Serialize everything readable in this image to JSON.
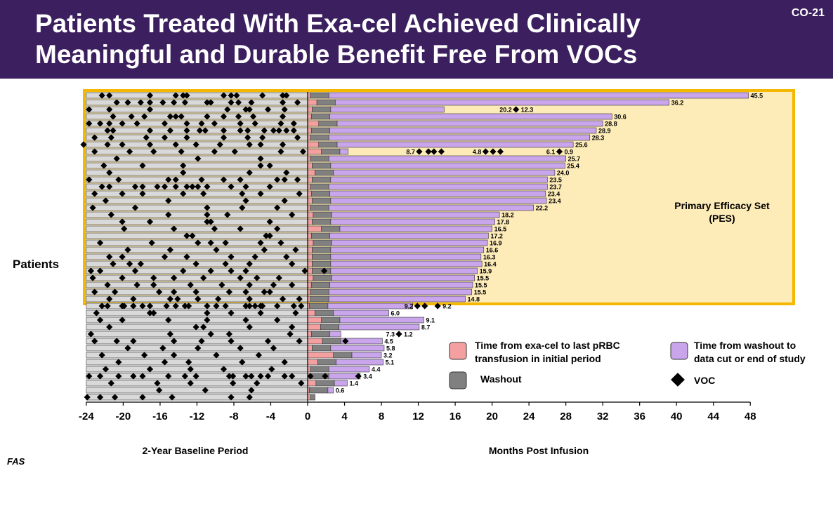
{
  "slide": {
    "title_line1": "Patients Treated With Exa-cel Achieved Clinically",
    "title_line2": "Meaningful and Durable Benefit Free From VOCs",
    "slide_id": "CO-21",
    "footnote": "FAS"
  },
  "chart_data": {
    "type": "swimmer",
    "y_label": "Patients",
    "x_left_label": "2-Year Baseline Period",
    "x_right_label": "Months Post Infusion",
    "x_ticks": [
      -24,
      -20,
      -16,
      -12,
      -8,
      -4,
      0,
      4,
      8,
      12,
      16,
      20,
      24,
      28,
      32,
      36,
      40,
      44,
      48
    ],
    "xlim": [
      -24,
      48
    ],
    "pes_label_line1": "Primary Efficacy Set",
    "pes_label_line2": "(PES)",
    "pes_count": 30,
    "colors": {
      "transfusion": "#f4a0a0",
      "washout": "#808080",
      "post": "#c9a6ec",
      "baseline": "#d9d9d9",
      "pes_fill": "#fdebb8",
      "pes_border": "#f5b800",
      "header": "#3b1f5e"
    },
    "legend": {
      "transfusion": "Time from exa-cel to last pRBC transfusion in initial period",
      "washout": "Washout",
      "post": "Time from washout to data cut or end of study",
      "voc": "VOC"
    },
    "patients": [
      {
        "total": "45.5",
        "t": 0.3,
        "w": 2.0,
        "b": [
          -22.3,
          -21.5,
          -17.1,
          -14.3,
          -13.5,
          -13.1,
          -9.1,
          -8.3,
          -7.7,
          -4.9,
          -2.7,
          -2.3
        ]
      },
      {
        "total": "36.2",
        "t": 1.0,
        "w": 2.0,
        "b": [
          -20.7,
          -19.5,
          -18.1,
          -17.1,
          -15.7,
          -14.5,
          -13.3,
          -10.9,
          -10.5,
          -8.3,
          -7.5,
          -6.1,
          -2.7,
          -1.1
        ]
      },
      {
        "total": "12.3",
        "t": 0.5,
        "w": 2.0,
        "b": [
          -23.7,
          -21.5,
          -17.1,
          -8.7,
          -6.7,
          -6.3,
          -4.3,
          -2.5
        ],
        "p": [
          [
            22.6,
            "20.2"
          ]
        ]
      },
      {
        "total": "30.6",
        "t": 0.4,
        "w": 2.0,
        "b": [
          -21.1,
          -19.1,
          -17.7,
          -14.9,
          -14.3,
          -13.7,
          -10.9,
          -9.1,
          -7.5,
          -5.9,
          -2.7
        ]
      },
      {
        "total": "28.8",
        "t": 1.2,
        "w": 2.0,
        "b": [
          -23.7,
          -22.5,
          -21.5,
          -20.1,
          -18.5,
          -15.5,
          -13.1,
          -11.5,
          -10.1,
          -7.3,
          -5.7,
          -2.9,
          -1.5
        ]
      },
      {
        "total": "28.9",
        "t": 0.4,
        "w": 2.0,
        "b": [
          -21.7,
          -21.1,
          -17.1,
          -14.9,
          -13.1,
          -11.7,
          -11.1,
          -9.1,
          -7.3,
          -6.5,
          -4.7,
          -3.7,
          -3.1,
          -2.3,
          -1.5
        ]
      },
      {
        "total": "28.3",
        "t": 0.3,
        "w": 2.0,
        "b": [
          -23.1,
          -21.3,
          -17.5,
          -15.5,
          -13.1,
          -9.1,
          -6.5,
          -4.9,
          -1.1
        ]
      },
      {
        "total": "25.6",
        "t": 1.2,
        "w": 2.0,
        "b": [
          -24.3,
          -21.7,
          -20.1,
          -17.1,
          -14.3,
          -12.1,
          -9.5,
          -6.3,
          -5.1,
          -2.7
        ]
      },
      {
        "total": "0.9",
        "t": 1.5,
        "w": 2.0,
        "b": [
          -23.1,
          -19.3,
          -16.7,
          -13.7,
          -10.1,
          -7.9,
          -2.9,
          -0.5
        ],
        "p": [
          [
            12.1,
            "8.7"
          ],
          [
            13.1,
            ""
          ],
          [
            13.7,
            ""
          ],
          [
            14.5,
            ""
          ],
          [
            19.3,
            "4.8"
          ],
          [
            20.1,
            ""
          ],
          [
            20.9,
            ""
          ],
          [
            27.3,
            "6.1"
          ]
        ]
      },
      {
        "total": "25.7",
        "t": 0.3,
        "w": 2.0,
        "b": [
          -20.7,
          -11.9,
          -5.1
        ]
      },
      {
        "total": "25.4",
        "t": 0.5,
        "w": 2.0,
        "b": [
          -22.1,
          -17.9,
          -13.5,
          -5.1,
          -4.1
        ]
      },
      {
        "total": "24.0",
        "t": 0.8,
        "w": 2.0,
        "b": [
          -21.5,
          -13.5,
          -6.3,
          -2.3
        ]
      },
      {
        "total": "23.5",
        "t": 0.5,
        "w": 2.0,
        "b": [
          -23.7,
          -20.5,
          -15.1,
          -14.3,
          -11.5,
          -9.1,
          -7.3,
          -3.3,
          -2.5,
          -1.1
        ]
      },
      {
        "total": "23.7",
        "t": 0.3,
        "w": 2.0,
        "b": [
          -22.3,
          -21.5,
          -18.7,
          -17.9,
          -16.3,
          -15.5,
          -14.3,
          -13.1,
          -12.5,
          -11.9,
          -10.9,
          -8.3,
          -6.7,
          -4.1
        ]
      },
      {
        "total": "23.4",
        "t": 0.4,
        "w": 2.0,
        "b": [
          -23.1,
          -20.1,
          -17.9,
          -13.5,
          -11.3,
          -7.1,
          -5.1,
          -0.9
        ]
      },
      {
        "total": "23.4",
        "t": 0.5,
        "w": 2.0,
        "b": [
          -21.9,
          -15.1,
          -6.7,
          -2.5
        ]
      },
      {
        "total": "22.2",
        "t": 0.3,
        "w": 2.0,
        "b": [
          -23.3,
          -18.7,
          -10.9,
          -7.1,
          -3.3
        ]
      },
      {
        "total": "18.2",
        "t": 0.6,
        "w": 2.0,
        "b": [
          -21.3,
          -15.1,
          -10.9,
          -8.7,
          -1.7
        ]
      },
      {
        "total": "17.8",
        "t": 0.5,
        "w": 2.0,
        "b": [
          -20.1,
          -17.1,
          -10.9,
          -10.5,
          -4.1
        ]
      },
      {
        "total": "16.5",
        "t": 1.5,
        "w": 2.0,
        "b": [
          -19.9,
          -14.5,
          -10.1,
          -7.3,
          -3.3
        ]
      },
      {
        "total": "17.2",
        "t": 0.4,
        "w": 2.0,
        "b": [
          -13.1,
          -12.5,
          -4.5,
          -4.1
        ]
      },
      {
        "total": "16.9",
        "t": 0.6,
        "w": 2.0,
        "b": [
          -22.5,
          -16.9,
          -11.9,
          -10.5,
          -8.9,
          -5.1,
          -2.9
        ]
      },
      {
        "total": "16.6",
        "t": 0.5,
        "w": 2.0,
        "b": [
          -19.5,
          -14.9,
          -9.9,
          -4.7,
          -1.3
        ]
      },
      {
        "total": "16.3",
        "t": 0.5,
        "w": 2.0,
        "b": [
          -21.5,
          -20.1,
          -15.5,
          -13.1,
          -8.3,
          -5.7,
          -2.3
        ]
      },
      {
        "total": "16.4",
        "t": 0.5,
        "w": 2.0,
        "b": [
          -21.1,
          -19.3,
          -18.1,
          -12.1,
          -8.9,
          -6.3,
          -1.7
        ]
      },
      {
        "total": "15.9",
        "t": 0.5,
        "w": 2.0,
        "b": [
          -23.5,
          -22.5,
          -18.7,
          -13.5,
          -10.5,
          -8.3,
          -6.7,
          -0.3,
          1.8
        ]
      },
      {
        "total": "15.5",
        "t": 0.6,
        "w": 2.0,
        "b": [
          -23.3,
          -20.1,
          -16.7,
          -14.5,
          -11.3,
          -7.3,
          -5.5,
          -3.1
        ]
      },
      {
        "total": "15.5",
        "t": 0.4,
        "w": 2.0,
        "b": [
          -21.7,
          -18.5,
          -16.7,
          -12.7,
          -9.3,
          -6.3,
          -3.7,
          -1.7
        ]
      },
      {
        "total": "15.5",
        "t": 0.3,
        "w": 2.0,
        "b": [
          -23.1,
          -20.9,
          -16.1,
          -14.5,
          -12.1,
          -8.5,
          -6.7,
          -4.7,
          -4.1
        ]
      },
      {
        "total": "14.8",
        "t": 0.3,
        "w": 2.0,
        "b": [
          -21.5,
          -18.9,
          -14.9,
          -14.1,
          -11.9,
          -9.7,
          -6.3,
          -2.7,
          -0.9
        ]
      },
      {
        "total": "9.2",
        "t": 0.2,
        "w": 2.0,
        "b": [
          -22.3,
          -21.7,
          -20.1,
          -19.9,
          -18.9,
          -17.9,
          -17.1,
          -15.3,
          -14.3,
          -13.3,
          -12.9,
          -10.9,
          -9.9,
          -8.9,
          -6.7,
          -6.3,
          -5.7,
          -5.1,
          -4.9,
          -3.3,
          -1.5,
          -0.7
        ],
        "p": [
          [
            11.9,
            "9.2"
          ],
          [
            12.7,
            ""
          ],
          [
            14.1,
            ""
          ]
        ]
      },
      {
        "total": "6.0",
        "t": 0.8,
        "w": 2.0,
        "b": [
          -22.9,
          -17.1,
          -16.7,
          -10.9,
          -8.3,
          -5.1,
          -1.3
        ]
      },
      {
        "total": "9.1",
        "t": 1.5,
        "w": 2.0,
        "b": [
          -22.5,
          -20.1,
          -15.1,
          -10.9,
          -6.7,
          -3.3
        ]
      },
      {
        "total": "8.7",
        "t": 1.4,
        "w": 2.0,
        "b": [
          -21.5,
          -12.1,
          -11.3,
          -6.3,
          -1.7
        ]
      },
      {
        "total": "1.2",
        "t": 0.4,
        "w": 2.0,
        "b": [
          -23.5,
          -14.9,
          -10.5,
          -8.5,
          -1.9
        ],
        "p": [
          [
            9.9,
            "7.3"
          ]
        ]
      },
      {
        "total": "4.5",
        "t": 1.6,
        "w": 2.0,
        "b": [
          -23.1,
          -20.7,
          -18.9,
          -14.5,
          -11.5,
          -8.3,
          -4.3,
          -0.9
        ],
        "p": [
          [
            4.1,
            ""
          ]
        ]
      },
      {
        "total": "5.8",
        "t": 0.5,
        "w": 2.0,
        "b": [
          -19.5,
          -15.7,
          -11.9,
          -7.3,
          -3.7
        ]
      },
      {
        "total": "3.2",
        "t": 2.8,
        "w": 2.0,
        "b": [
          -22.3,
          -17.7,
          -14.5,
          -9.9,
          -5.3
        ]
      },
      {
        "total": "5.1",
        "t": 1.1,
        "w": 2.0,
        "b": [
          -20.5,
          -15.5,
          -12.9,
          -7.1,
          -2.5
        ]
      },
      {
        "total": "4.4",
        "t": 0.3,
        "w": 2.0,
        "b": [
          -21.9,
          -17.1,
          -12.7,
          -9.1,
          -3.9
        ]
      },
      {
        "total": "3.4",
        "t": 0.3,
        "w": 2.0,
        "b": [
          -23.7,
          -22.5,
          -20.5,
          -18.9,
          -17.9,
          -15.1,
          -13.3,
          -12.1,
          -8.5,
          -8.1,
          -6.7,
          -6.1,
          -5.1,
          -4.3,
          -2.5,
          -1.7,
          0.3
        ],
        "p": [
          [
            1.9,
            ""
          ],
          [
            5.5,
            ""
          ]
        ]
      },
      {
        "total": "1.4",
        "t": 0.9,
        "w": 2.0,
        "b": [
          -21.3,
          -16.3,
          -12.7,
          -8.1,
          -5.5,
          -0.7
        ]
      },
      {
        "total": "0.6",
        "t": 0.2,
        "w": 2.0,
        "b": [
          -16.1,
          -11.1,
          -6.1
        ]
      },
      {
        "total": "",
        "t": 0.3,
        "w": 0.5,
        "b": [
          -23.9,
          -22.5,
          -20.9,
          -17.9,
          -14.7,
          -8.3,
          -6.3
        ]
      }
    ]
  }
}
